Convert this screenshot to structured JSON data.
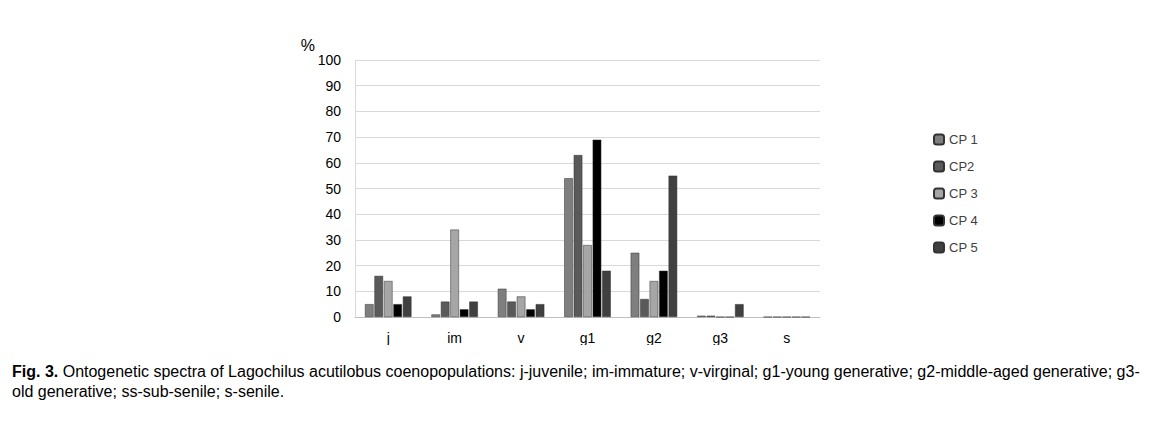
{
  "chart_data": {
    "type": "bar",
    "y_label": "%",
    "caption_label": "Fig. 3.",
    "caption": "Ontogenetic spectra of Lagochilus acutilobus coenopopulations: j-juvenile; im-immature; v-virginal; g1-young generative; g2-middle-aged generative; g3-old generative; ss-sub-senile; s-senile.",
    "categories": [
      "j",
      "im",
      "v",
      "g1",
      "g2",
      "g3",
      "s"
    ],
    "series": [
      {
        "name": "CP 1",
        "color": "#7f7f7f",
        "values": [
          5,
          1,
          11,
          54,
          25,
          0.5,
          0
        ]
      },
      {
        "name": "CP2",
        "color": "#5a5a5a",
        "values": [
          16,
          6,
          6,
          63,
          7,
          0.5,
          0
        ]
      },
      {
        "name": "CP 3",
        "color": "#a6a6a6",
        "values": [
          14,
          34,
          8,
          28,
          14,
          0,
          0
        ]
      },
      {
        "name": "CP 4",
        "color": "#000000",
        "values": [
          5,
          3,
          3,
          69,
          18,
          0,
          0
        ]
      },
      {
        "name": "CP 5",
        "color": "#404040",
        "values": [
          8,
          6,
          5,
          18,
          55,
          5,
          0
        ]
      }
    ],
    "ylim": [
      0,
      100
    ],
    "yticks": [
      0,
      10,
      20,
      30,
      40,
      50,
      60,
      70,
      80,
      90,
      100
    ],
    "grid": true,
    "legend": "right"
  }
}
